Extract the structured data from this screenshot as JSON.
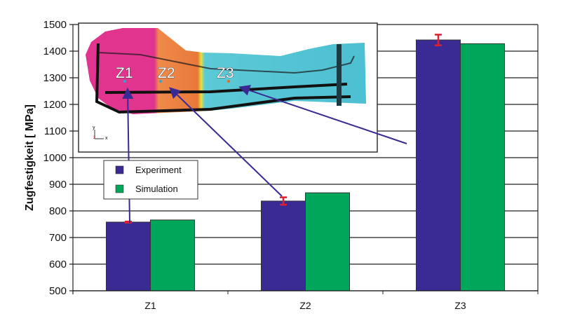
{
  "chart_data": {
    "type": "bar",
    "title": "",
    "xlabel": "",
    "ylabel": "Zugfestigkeit [ MPa]",
    "ylim": [
      500,
      1500
    ],
    "yticks": [
      500,
      600,
      700,
      800,
      900,
      1000,
      1100,
      1200,
      1300,
      1400,
      1500
    ],
    "grid": true,
    "categories": [
      "Z1",
      "Z2",
      "Z3"
    ],
    "series": [
      {
        "name": "Experiment",
        "color": "#3a2a94",
        "values": [
          758,
          837,
          1442
        ],
        "error": [
          2,
          14,
          20
        ]
      },
      {
        "name": "Simulation",
        "color": "#00a65a",
        "values": [
          766,
          868,
          1428
        ]
      }
    ],
    "legend_placement": "center-left",
    "error_bar_color": "#e02030",
    "inset": {
      "description_labels": [
        "Z1",
        "Z2",
        "Z3"
      ],
      "axis_labels": [
        "y",
        "z",
        "x"
      ],
      "colors": [
        "#e0348f",
        "#ee8a4a",
        "#e8e040",
        "#5cc9d6"
      ]
    }
  }
}
